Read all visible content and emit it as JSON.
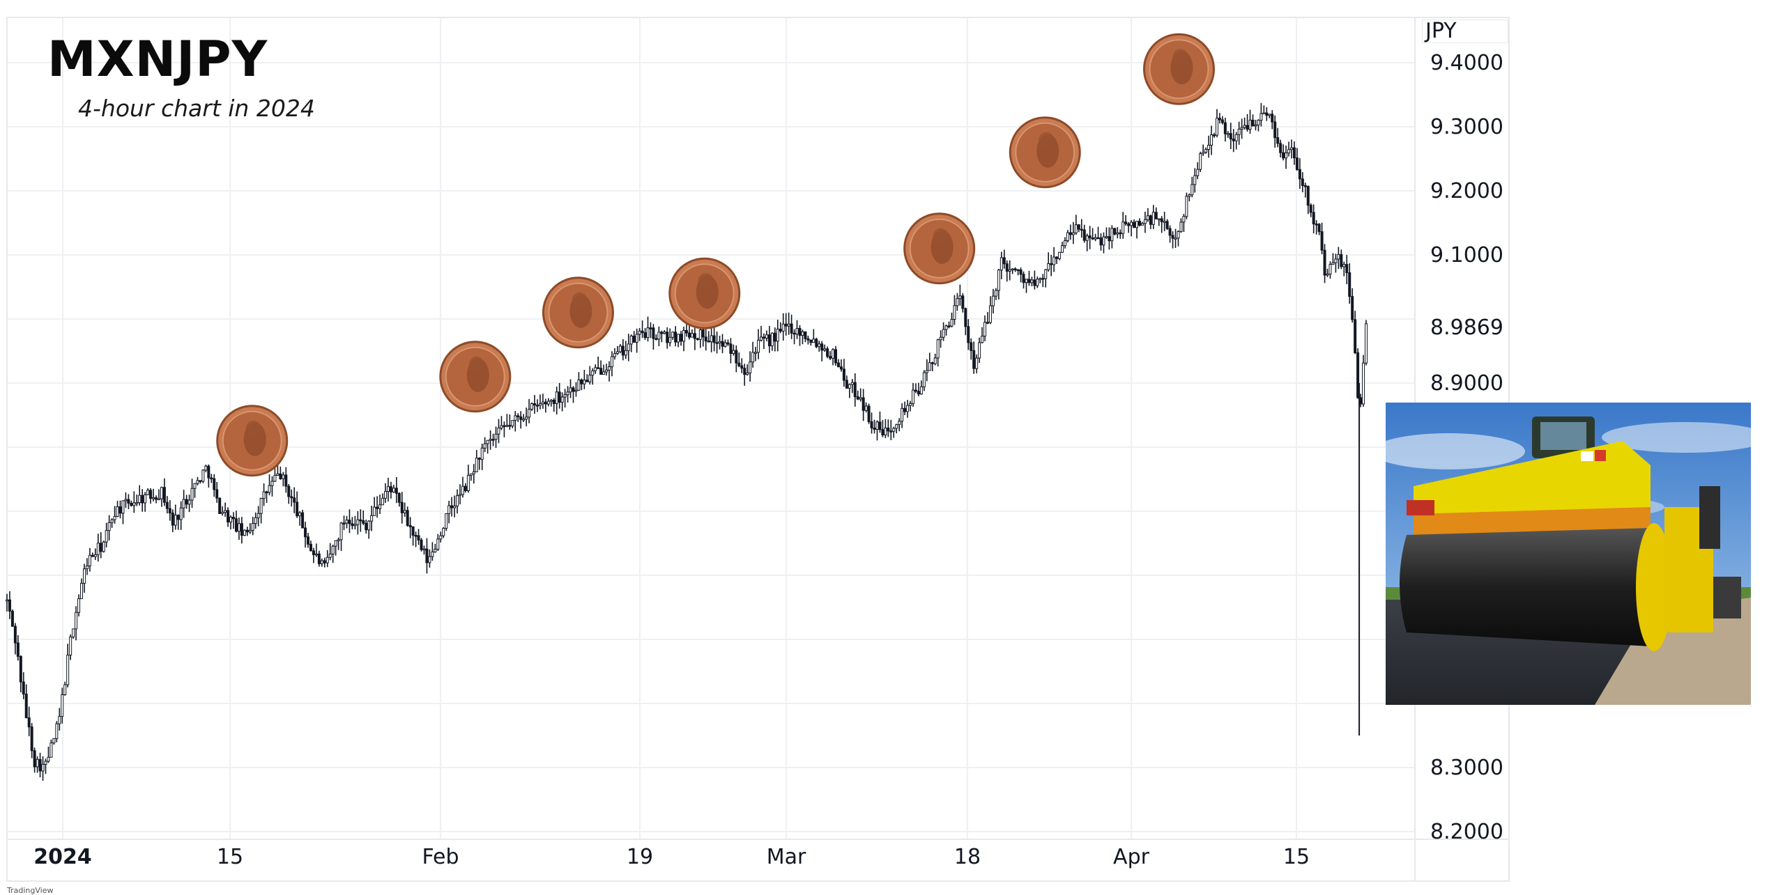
{
  "title": "MXNJPY",
  "subtitle": "4-hour chart in 2024",
  "axis_unit": "JPY",
  "footer_logo": "TradingView",
  "colors": {
    "candle": "#131722",
    "grid": "#eef0f3",
    "penny": "#b5653d",
    "background": "#ffffff"
  },
  "icons": {
    "marker": "penny-coin-icon",
    "inset_photo": "road-roller-photo"
  },
  "chart_data": {
    "type": "candlestick",
    "ylabel": "JPY",
    "ylim": [
      8.16,
      9.46
    ],
    "y_ticks": [
      "9.4000",
      "9.3000",
      "9.2000",
      "9.1000",
      "8.9000",
      "8.3000",
      "8.2000"
    ],
    "last_price_label": "8.9869",
    "x_ticks": [
      "2024",
      "15",
      "Feb",
      "19",
      "Mar",
      "18",
      "Apr",
      "15"
    ],
    "grid": true,
    "path_points": [
      [
        0,
        8.56
      ],
      [
        12,
        8.5
      ],
      [
        25,
        8.4
      ],
      [
        40,
        8.31
      ],
      [
        55,
        8.3
      ],
      [
        75,
        8.37
      ],
      [
        95,
        8.52
      ],
      [
        115,
        8.62
      ],
      [
        140,
        8.65
      ],
      [
        155,
        8.7
      ],
      [
        190,
        8.72
      ],
      [
        225,
        8.73
      ],
      [
        240,
        8.68
      ],
      [
        260,
        8.72
      ],
      [
        290,
        8.77
      ],
      [
        305,
        8.71
      ],
      [
        345,
        8.66
      ],
      [
        375,
        8.73
      ],
      [
        395,
        8.76
      ],
      [
        420,
        8.7
      ],
      [
        440,
        8.64
      ],
      [
        460,
        8.61
      ],
      [
        490,
        8.69
      ],
      [
        520,
        8.68
      ],
      [
        555,
        8.74
      ],
      [
        590,
        8.66
      ],
      [
        610,
        8.62
      ],
      [
        640,
        8.7
      ],
      [
        665,
        8.74
      ],
      [
        685,
        8.79
      ],
      [
        720,
        8.83
      ],
      [
        760,
        8.86
      ],
      [
        800,
        8.88
      ],
      [
        845,
        8.91
      ],
      [
        880,
        8.94
      ],
      [
        920,
        8.98
      ],
      [
        960,
        8.97
      ],
      [
        990,
        8.98
      ],
      [
        1020,
        8.97
      ],
      [
        1050,
        8.95
      ],
      [
        1070,
        8.92
      ],
      [
        1085,
        8.96
      ],
      [
        1110,
        8.97
      ],
      [
        1130,
        8.99
      ],
      [
        1165,
        8.97
      ],
      [
        1200,
        8.94
      ],
      [
        1215,
        8.9
      ],
      [
        1235,
        8.88
      ],
      [
        1250,
        8.84
      ],
      [
        1270,
        8.82
      ],
      [
        1300,
        8.86
      ],
      [
        1325,
        8.9
      ],
      [
        1345,
        8.95
      ],
      [
        1360,
        8.99
      ],
      [
        1380,
        9.03
      ],
      [
        1400,
        8.93
      ],
      [
        1420,
        9.0
      ],
      [
        1440,
        9.09
      ],
      [
        1465,
        9.07
      ],
      [
        1490,
        9.05
      ],
      [
        1520,
        9.1
      ],
      [
        1545,
        9.14
      ],
      [
        1575,
        9.12
      ],
      [
        1610,
        9.14
      ],
      [
        1640,
        9.15
      ],
      [
        1665,
        9.16
      ],
      [
        1690,
        9.12
      ],
      [
        1710,
        9.19
      ],
      [
        1730,
        9.26
      ],
      [
        1755,
        9.31
      ],
      [
        1775,
        9.28
      ],
      [
        1800,
        9.31
      ],
      [
        1830,
        9.32
      ],
      [
        1845,
        9.25
      ],
      [
        1860,
        9.27
      ],
      [
        1880,
        9.2
      ],
      [
        1900,
        9.13
      ],
      [
        1910,
        9.06
      ],
      [
        1925,
        9.1
      ],
      [
        1940,
        9.07
      ],
      [
        1950,
        8.99
      ],
      [
        1958,
        8.84
      ],
      [
        1968,
        8.9869
      ]
    ],
    "spike_low": 8.35,
    "penny_markers": [
      {
        "x_index": 355,
        "price": 8.81
      },
      {
        "x_index": 678,
        "price": 8.91
      },
      {
        "x_index": 827,
        "price": 9.01
      },
      {
        "x_index": 1010,
        "price": 9.04
      },
      {
        "x_index": 1350,
        "price": 9.11
      },
      {
        "x_index": 1503,
        "price": 9.26
      },
      {
        "x_index": 1697,
        "price": 9.39
      }
    ]
  }
}
